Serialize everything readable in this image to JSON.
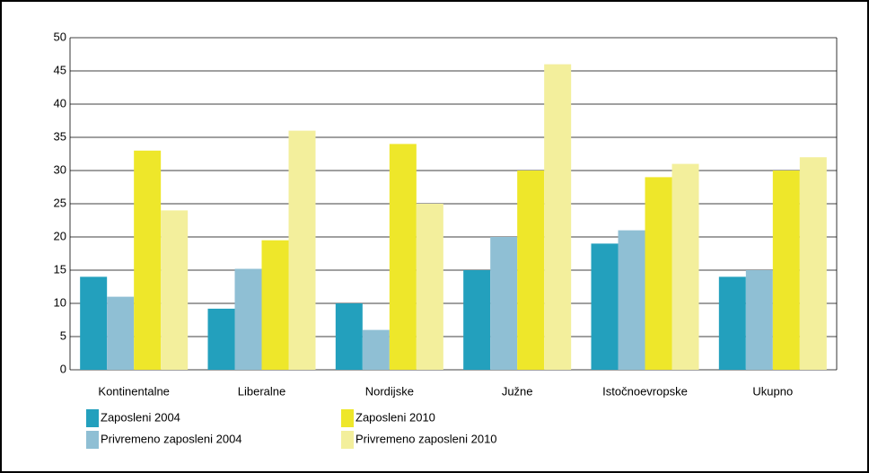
{
  "chart_data": {
    "type": "bar",
    "categories": [
      "Kontinentalne",
      "Liberalne",
      "Nordijske",
      "Južne",
      "Istočnoevropske",
      "Ukupno"
    ],
    "series": [
      {
        "name": "Zaposleni 2004",
        "color": "#23a0bd",
        "values": [
          14,
          9.2,
          10,
          15,
          19,
          14
        ]
      },
      {
        "name": "Privremeno zaposleni 2004",
        "color": "#8fbfd4",
        "values": [
          11,
          15.2,
          6,
          20,
          21,
          15
        ]
      },
      {
        "name": "Zaposleni 2010",
        "color": "#eee72a",
        "values": [
          33,
          19.5,
          34,
          30,
          29,
          30
        ]
      },
      {
        "name": "Privremeno zaposleni 2010",
        "color": "#f3ef9c",
        "values": [
          24,
          36,
          25,
          46,
          31,
          32
        ]
      }
    ],
    "ylim": [
      0,
      50
    ],
    "yticks": [
      0,
      5,
      10,
      15,
      20,
      25,
      30,
      35,
      40,
      45,
      50
    ],
    "grid": true
  }
}
